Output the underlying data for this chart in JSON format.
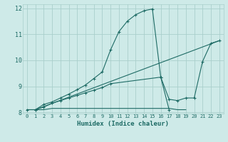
{
  "xlabel": "Humidex (Indice chaleur)",
  "bg_color": "#ceeae8",
  "grid_color": "#aacfcc",
  "line_color": "#1e6b65",
  "xlim": [
    -0.5,
    23.5
  ],
  "ylim": [
    7.95,
    12.15
  ],
  "xticks": [
    0,
    1,
    2,
    3,
    4,
    5,
    6,
    7,
    8,
    9,
    10,
    11,
    12,
    13,
    14,
    15,
    16,
    17,
    18,
    19,
    20,
    21,
    22,
    23
  ],
  "yticks": [
    8,
    9,
    10,
    11,
    12
  ],
  "lines": [
    {
      "x": [
        0,
        1,
        2,
        3,
        4,
        5,
        6,
        7,
        8,
        9,
        10,
        11,
        12,
        13,
        14,
        15,
        16,
        17
      ],
      "y": [
        8.1,
        8.1,
        8.3,
        8.4,
        8.55,
        8.7,
        8.87,
        9.05,
        9.3,
        9.55,
        10.4,
        11.1,
        11.5,
        11.75,
        11.9,
        11.97,
        9.35,
        8.1
      ],
      "marker": "+"
    },
    {
      "x": [
        1,
        23
      ],
      "y": [
        8.1,
        10.75
      ],
      "marker": null
    },
    {
      "x": [
        0,
        1,
        2,
        3,
        4,
        5,
        6,
        7,
        8,
        9,
        10,
        11,
        12,
        13,
        14,
        15,
        16,
        17,
        18,
        19
      ],
      "y": [
        8.1,
        8.1,
        8.1,
        8.15,
        8.15,
        8.15,
        8.15,
        8.15,
        8.15,
        8.15,
        8.15,
        8.15,
        8.15,
        8.15,
        8.15,
        8.15,
        8.15,
        8.15,
        8.1,
        8.1
      ],
      "marker": null
    },
    {
      "x": [
        1,
        2,
        3,
        4,
        5,
        6,
        7,
        8,
        9,
        10,
        16,
        17,
        18,
        19,
        20,
        21,
        22,
        23
      ],
      "y": [
        8.1,
        8.2,
        8.35,
        8.45,
        8.55,
        8.65,
        8.75,
        8.85,
        8.95,
        9.1,
        9.35,
        8.5,
        8.45,
        8.55,
        8.55,
        9.95,
        10.65,
        10.75
      ],
      "marker": "+"
    }
  ]
}
